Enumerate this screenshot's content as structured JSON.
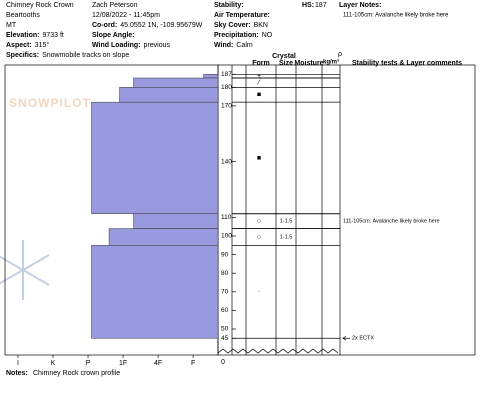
{
  "header": {
    "left": [
      {
        "value": "Chimney Rock Crown"
      },
      {
        "value": "Beartooths"
      },
      {
        "value": "MT"
      },
      {
        "label": "Elevation:",
        "value": "9733 ft"
      },
      {
        "label": "Aspect:",
        "value": "315°"
      },
      {
        "label": "Specifics:",
        "value": "Snowmobile tracks on slope"
      }
    ],
    "middle": [
      {
        "value": "Zach Peterson"
      },
      {
        "value": "12/08/2022 - 11:45pm"
      },
      {
        "label": "Co-ord:",
        "value": "45.0552 1N, -109.95679W"
      },
      {
        "label": "Slope Angle:",
        "value": ""
      },
      {
        "label": "Wind Loading:",
        "value": "previous"
      }
    ],
    "right": [
      {
        "label": "Stability:",
        "value": ""
      },
      {
        "label": "Air Temperature:",
        "value": ""
      },
      {
        "label": "Sky Cover:",
        "value": "BKN"
      },
      {
        "label": "Precipitation:",
        "value": "NO"
      },
      {
        "label": "Wind:",
        "value": "Calm"
      }
    ],
    "hs": {
      "label": "HS:",
      "value": "187"
    },
    "layer_notes": {
      "label": "Layer Notes:",
      "value": "111-105cm: Avalanche likely broke here"
    }
  },
  "columns": {
    "crystal": "Crystal",
    "form": "Form",
    "size": "Size",
    "moisture": "Moisture",
    "rho": "ρ",
    "density_unit": "kg/m³",
    "comments": "Stability tests & Layer comments"
  },
  "watermark": "SNOWPILOT",
  "break_label": "0",
  "notes": {
    "label": "Notes:",
    "value": "Chimney Rock crown profile"
  },
  "chart_data": {
    "type": "hardness-profile",
    "ylim": [
      36,
      192
    ],
    "yticks": [
      187,
      180,
      170,
      140,
      110,
      100,
      90,
      80,
      70,
      60,
      50,
      45
    ],
    "xlim": [
      6.37,
      0.29
    ],
    "xticks": [
      {
        "value": 6,
        "label": "I"
      },
      {
        "value": 5,
        "label": "K"
      },
      {
        "value": 4,
        "label": "P"
      },
      {
        "value": 3,
        "label": "1F"
      },
      {
        "value": 2,
        "label": "4F"
      },
      {
        "value": 1,
        "label": "F"
      }
    ],
    "color": "#9999dd",
    "layers": [
      {
        "top": 187,
        "bottom": 185,
        "hardness": 0.7,
        "form": "+"
      },
      {
        "top": 185,
        "bottom": 180,
        "hardness": 2.7,
        "form": "⁄"
      },
      {
        "top": 180,
        "bottom": 172,
        "hardness": 3.1,
        "form": "■"
      },
      {
        "top": 172,
        "bottom": 112,
        "hardness": 3.9,
        "form": "■"
      },
      {
        "top": 112,
        "bottom": 104,
        "hardness": 2.7,
        "form": "○",
        "size": "1-1.5",
        "comment": "111-105cm: Avalanche likely broke here"
      },
      {
        "top": 104,
        "bottom": 95,
        "hardness": 3.4,
        "form": "○",
        "size": "1-1.5"
      },
      {
        "top": 95,
        "bottom": 45,
        "hardness": 3.9,
        "form": "·"
      }
    ],
    "tests": [
      {
        "height": 45,
        "label": "2x ECTX"
      }
    ]
  }
}
